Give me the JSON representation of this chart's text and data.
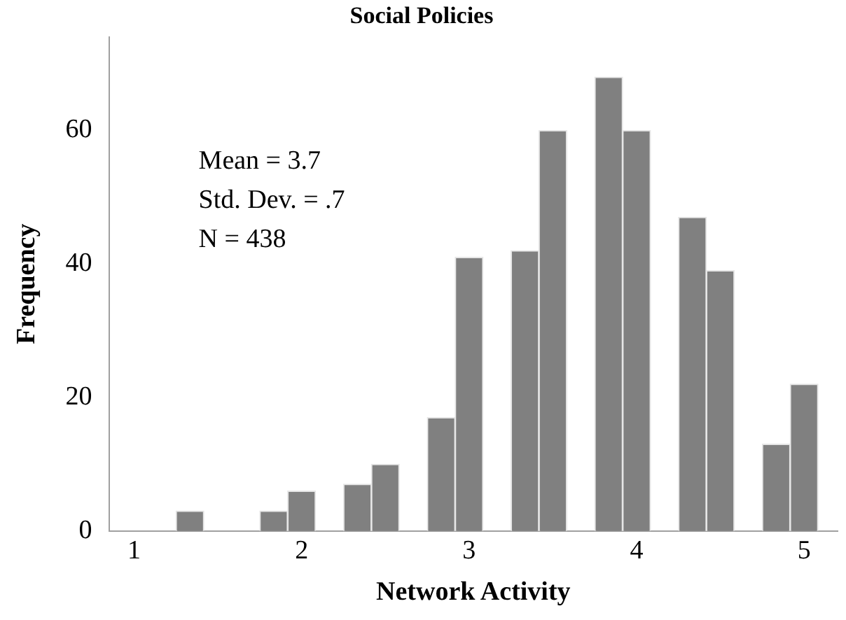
{
  "chart_data": {
    "type": "histogram",
    "title": "Social Policies",
    "xlabel": "Network Activity",
    "ylabel": "Frequency",
    "bins": [
      1.25,
      1.417,
      1.583,
      1.75,
      1.917,
      2.083,
      2.25,
      2.417,
      2.583,
      2.75,
      2.917,
      3.083,
      3.25,
      3.417,
      3.583,
      3.75,
      3.917,
      4.083,
      4.25,
      4.417,
      4.583,
      4.75,
      4.917,
      5.083
    ],
    "values": [
      3,
      0,
      0,
      3,
      6,
      0,
      7,
      10,
      0,
      17,
      41,
      0,
      42,
      60,
      0,
      68,
      60,
      0,
      47,
      39,
      0,
      13,
      22
    ],
    "color": "#808080",
    "xlim": [
      0.85,
      5.2
    ],
    "xticks": [
      1,
      2,
      3,
      4,
      5
    ],
    "ylim": [
      0,
      74
    ],
    "yticks": [
      0,
      20,
      40,
      60
    ],
    "grid": false,
    "legend": false,
    "annotations": [
      "Mean = 3.7",
      "Std. Dev. = .7",
      "N = 438"
    ]
  }
}
